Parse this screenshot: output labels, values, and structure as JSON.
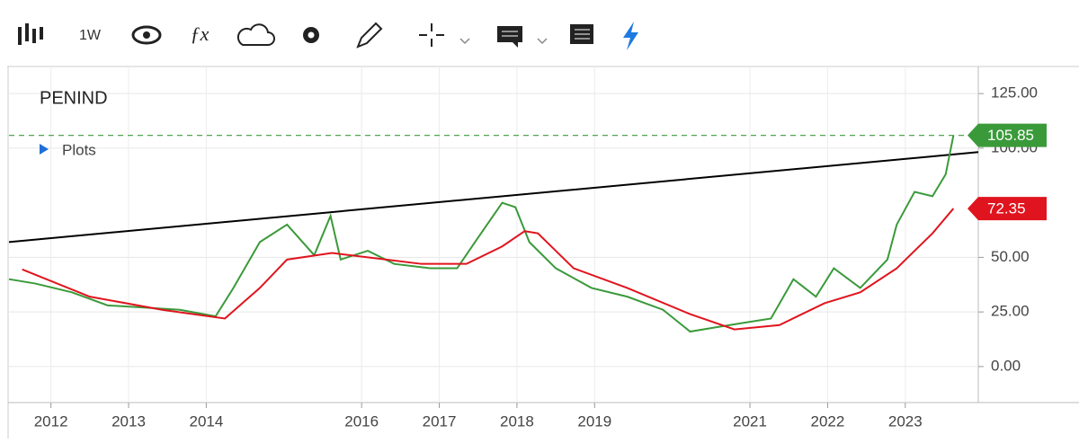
{
  "toolbar": {
    "interval": "1W"
  },
  "chart_data": {
    "type": "line",
    "title": "PENIND",
    "legend_toggle": "Plots",
    "xlim": [
      2011.46,
      2023.94
    ],
    "xticks": [
      2012,
      2013,
      2014,
      2016,
      2017,
      2018,
      2019,
      2021,
      2022,
      2023
    ],
    "ylim": [
      -16.5,
      137.4
    ],
    "yticks": [
      {
        "value": 0,
        "label": "0.00"
      },
      {
        "value": 25,
        "label": "25.00"
      },
      {
        "value": 50,
        "label": "50.00"
      },
      {
        "value": 100,
        "label": "100.00"
      },
      {
        "value": 125,
        "label": "125.00"
      }
    ],
    "grid": true,
    "series": [
      {
        "color": "#3a9a3a",
        "last_value": 105.85,
        "x": [
          2011.46,
          2011.8,
          2012.27,
          2012.73,
          2013.2,
          2013.66,
          2014.12,
          2014.35,
          2014.69,
          2015.04,
          2015.39,
          2015.6,
          2015.73,
          2016.08,
          2016.42,
          2016.88,
          2017.23,
          2017.46,
          2017.81,
          2017.98,
          2018.16,
          2018.5,
          2018.96,
          2019.42,
          2019.88,
          2020.23,
          2020.57,
          2020.92,
          2021.27,
          2021.56,
          2021.85,
          2022.08,
          2022.42,
          2022.77,
          2022.89,
          2023.12,
          2023.35,
          2023.52,
          2023.62
        ],
        "values": [
          40,
          38,
          34,
          28,
          27,
          26,
          23,
          36,
          57,
          65,
          51,
          69,
          49,
          53,
          47,
          45,
          45,
          57,
          75,
          73,
          57,
          45,
          36,
          32,
          26,
          16,
          18,
          20,
          22,
          40,
          32,
          45,
          36,
          49,
          65,
          80,
          78,
          88,
          105.85
        ]
      },
      {
        "color": "#e0141e",
        "last_value": 72.35,
        "x": [
          2011.63,
          2012.5,
          2013.43,
          2014.24,
          2014.69,
          2015.04,
          2015.62,
          2016.2,
          2016.77,
          2017.35,
          2017.81,
          2018.1,
          2018.27,
          2018.73,
          2019.42,
          2020.23,
          2020.8,
          2021.38,
          2021.96,
          2022.42,
          2022.89,
          2023.35,
          2023.62
        ],
        "values": [
          44.5,
          32,
          26,
          22,
          36,
          49,
          52,
          49.5,
          47,
          47,
          55,
          62,
          61,
          45,
          36,
          24,
          17,
          19,
          29,
          34,
          45,
          61,
          72.35
        ]
      }
    ],
    "trendline": {
      "x": [
        2011.46,
        2023.94
      ],
      "values": [
        57,
        98.2
      ],
      "color": "#000000"
    }
  }
}
